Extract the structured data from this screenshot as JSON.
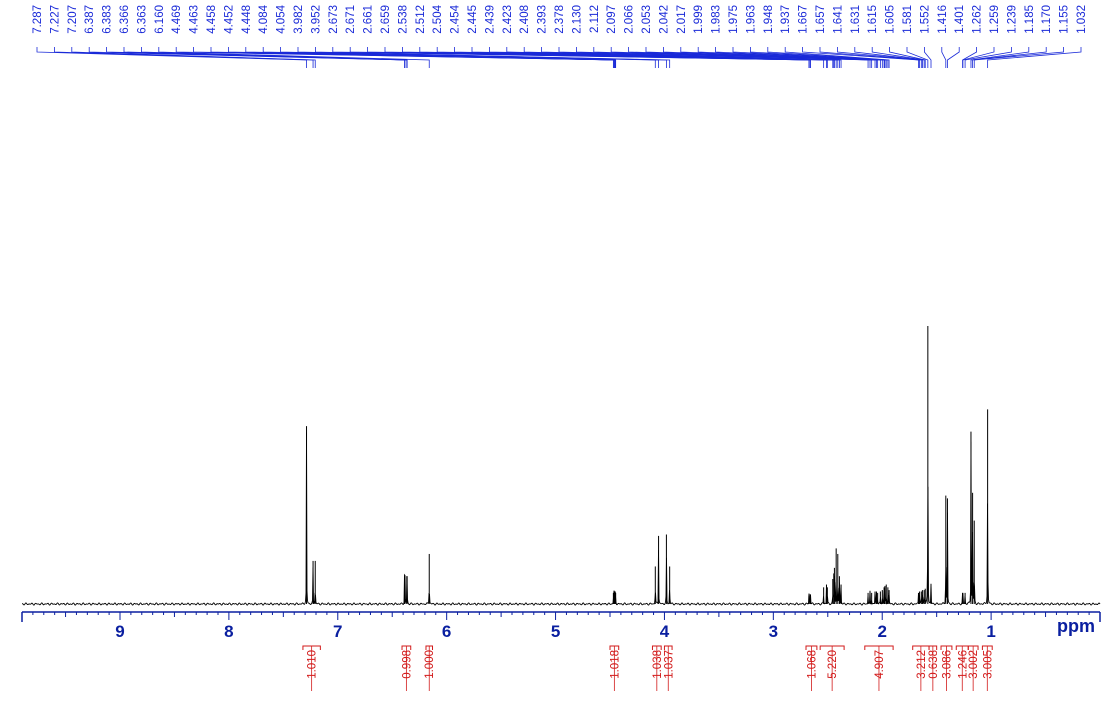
{
  "chart_data": {
    "type": "line",
    "xlabel": "ppm",
    "xlim": [
      9.9,
      0.0
    ],
    "axis_ticks": [
      9,
      8,
      7,
      6,
      5,
      4,
      3,
      2,
      1
    ],
    "peak_labels": [
      "7.287",
      "7.227",
      "7.207",
      "6.387",
      "6.383",
      "6.366",
      "6.363",
      "6.160",
      "4.469",
      "4.463",
      "4.458",
      "4.452",
      "4.448",
      "4.084",
      "4.054",
      "3.982",
      "3.952",
      "2.673",
      "2.671",
      "2.661",
      "2.659",
      "2.538",
      "2.512",
      "2.504",
      "2.454",
      "2.445",
      "2.439",
      "2.423",
      "2.408",
      "2.393",
      "2.378",
      "2.130",
      "2.112",
      "2.097",
      "2.066",
      "2.053",
      "2.042",
      "2.017",
      "1.999",
      "1.983",
      "1.975",
      "1.963",
      "1.948",
      "1.937",
      "1.667",
      "1.657",
      "1.641",
      "1.631",
      "1.615",
      "1.605",
      "1.581",
      "1.552",
      "1.416",
      "1.401",
      "1.262",
      "1.259",
      "1.239",
      "1.185",
      "1.170",
      "1.155",
      "1.032"
    ],
    "integrals": [
      {
        "label": "1.010",
        "from": 7.32,
        "to": 7.16
      },
      {
        "label": "0.998",
        "from": 6.41,
        "to": 6.33
      },
      {
        "label": "1.000",
        "from": 6.19,
        "to": 6.13
      },
      {
        "label": "1.018",
        "from": 4.5,
        "to": 4.42
      },
      {
        "label": "1.038",
        "from": 4.11,
        "to": 4.03
      },
      {
        "label": "1.037",
        "from": 4.0,
        "to": 3.93
      },
      {
        "label": "1.068",
        "from": 2.7,
        "to": 2.6
      },
      {
        "label": "5.220",
        "from": 2.57,
        "to": 2.35
      },
      {
        "label": "4.907",
        "from": 2.16,
        "to": 1.9
      },
      {
        "label": "3.212",
        "from": 1.72,
        "to": 1.57
      },
      {
        "label": "0.638",
        "from": 1.57,
        "to": 1.5
      },
      {
        "label": "3.086",
        "from": 1.46,
        "to": 1.36
      },
      {
        "label": "1.246",
        "from": 1.32,
        "to": 1.21
      },
      {
        "label": "3.002",
        "from": 1.21,
        "to": 1.12
      },
      {
        "label": "3.005",
        "from": 1.08,
        "to": 0.99
      }
    ],
    "peaks": [
      {
        "x": 7.287,
        "h": 0.64
      },
      {
        "x": 7.227,
        "h": 0.155
      },
      {
        "x": 7.207,
        "h": 0.155
      },
      {
        "x": 6.387,
        "h": 0.1
      },
      {
        "x": 6.383,
        "h": 0.1
      },
      {
        "x": 6.366,
        "h": 0.1
      },
      {
        "x": 6.363,
        "h": 0.1
      },
      {
        "x": 6.16,
        "h": 0.18
      },
      {
        "x": 4.469,
        "h": 0.04
      },
      {
        "x": 4.463,
        "h": 0.045
      },
      {
        "x": 4.458,
        "h": 0.045
      },
      {
        "x": 4.452,
        "h": 0.045
      },
      {
        "x": 4.448,
        "h": 0.04
      },
      {
        "x": 4.084,
        "h": 0.135
      },
      {
        "x": 4.054,
        "h": 0.245
      },
      {
        "x": 3.982,
        "h": 0.25
      },
      {
        "x": 3.952,
        "h": 0.135
      },
      {
        "x": 2.673,
        "h": 0.03
      },
      {
        "x": 2.671,
        "h": 0.03
      },
      {
        "x": 2.661,
        "h": 0.035
      },
      {
        "x": 2.659,
        "h": 0.03
      },
      {
        "x": 2.538,
        "h": 0.06
      },
      {
        "x": 2.512,
        "h": 0.07
      },
      {
        "x": 2.504,
        "h": 0.06
      },
      {
        "x": 2.454,
        "h": 0.09
      },
      {
        "x": 2.445,
        "h": 0.11
      },
      {
        "x": 2.439,
        "h": 0.13
      },
      {
        "x": 2.423,
        "h": 0.2
      },
      {
        "x": 2.408,
        "h": 0.18
      },
      {
        "x": 2.393,
        "h": 0.1
      },
      {
        "x": 2.378,
        "h": 0.07
      },
      {
        "x": 2.13,
        "h": 0.04
      },
      {
        "x": 2.112,
        "h": 0.045
      },
      {
        "x": 2.097,
        "h": 0.04
      },
      {
        "x": 2.066,
        "h": 0.045
      },
      {
        "x": 2.053,
        "h": 0.045
      },
      {
        "x": 2.042,
        "h": 0.04
      },
      {
        "x": 2.017,
        "h": 0.045
      },
      {
        "x": 1.999,
        "h": 0.05
      },
      {
        "x": 1.983,
        "h": 0.06
      },
      {
        "x": 1.975,
        "h": 0.065
      },
      {
        "x": 1.963,
        "h": 0.07
      },
      {
        "x": 1.948,
        "h": 0.06
      },
      {
        "x": 1.937,
        "h": 0.05
      },
      {
        "x": 1.667,
        "h": 0.04
      },
      {
        "x": 1.657,
        "h": 0.045
      },
      {
        "x": 1.641,
        "h": 0.045
      },
      {
        "x": 1.631,
        "h": 0.05
      },
      {
        "x": 1.615,
        "h": 0.05
      },
      {
        "x": 1.605,
        "h": 0.055
      },
      {
        "x": 1.581,
        "h": 1.0
      },
      {
        "x": 1.552,
        "h": 0.07
      },
      {
        "x": 1.416,
        "h": 0.39
      },
      {
        "x": 1.401,
        "h": 0.38
      },
      {
        "x": 1.262,
        "h": 0.04
      },
      {
        "x": 1.259,
        "h": 0.04
      },
      {
        "x": 1.239,
        "h": 0.04
      },
      {
        "x": 1.185,
        "h": 0.62
      },
      {
        "x": 1.17,
        "h": 0.4
      },
      {
        "x": 1.155,
        "h": 0.3
      },
      {
        "x": 1.032,
        "h": 0.7
      }
    ],
    "colors": {
      "spectrum": "#000000",
      "axis": "#0a1fa0",
      "peak_labels": "#1a2ad8",
      "integrals": "#d21a1a"
    }
  }
}
